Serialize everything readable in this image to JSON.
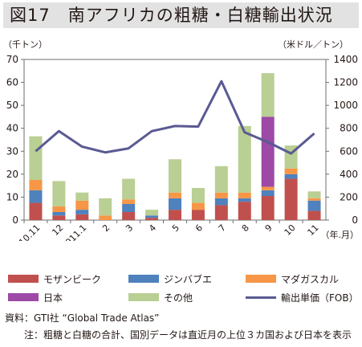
{
  "title": "図17　南アフリカの粗糖・白糖輸出状況",
  "yaxis_left_label": "（千トン）",
  "yaxis_right_label": "（米ドル／トン）",
  "xaxis_unit_label": "（年.月）",
  "source": "資料：GTI社 “Global Trade Atlas”",
  "note": "注：粗糖と白糖の合計、国別データは直近月の上位３カ国および日本を表示",
  "colors": {
    "mozambique": "#c0504d",
    "zimbabwe": "#4f81bd",
    "madagascar": "#f79646",
    "japan": "#9d49a6",
    "other": "#b9cf93",
    "price": "#5a5a93"
  },
  "chart_data": {
    "type": "bar",
    "stacked": true,
    "categories": [
      "2010.11",
      "12",
      "2011.1",
      "2",
      "3",
      "4",
      "5",
      "6",
      "7",
      "8",
      "9",
      "10",
      "11"
    ],
    "series": [
      {
        "name": "モザンビーク",
        "key": "mozambique",
        "values": [
          7.5,
          2,
          2.5,
          0,
          3.5,
          1,
          4.5,
          4.5,
          6.5,
          8,
          10.5,
          18,
          4
        ]
      },
      {
        "name": "ジンバブエ",
        "key": "zimbabwe",
        "values": [
          5.5,
          1.5,
          2,
          0,
          3.5,
          1,
          5,
          0,
          3,
          1.5,
          2.5,
          2,
          4.5
        ]
      },
      {
        "name": "マダガスカル",
        "key": "madagascar",
        "values": [
          4.5,
          2.5,
          4,
          2,
          2,
          0,
          2.5,
          3,
          2.5,
          2.5,
          1.5,
          2.5,
          1
        ]
      },
      {
        "name": "日本",
        "key": "japan",
        "values": [
          0,
          0,
          0,
          0,
          0,
          0,
          0,
          0,
          0,
          0,
          30.5,
          0,
          0
        ]
      },
      {
        "name": "その他",
        "key": "other",
        "values": [
          19,
          11,
          3.5,
          7.5,
          9,
          2.5,
          14.5,
          6.5,
          11.5,
          29,
          19,
          10,
          3
        ]
      }
    ],
    "line_series": {
      "name": "輸出単価（FOB）",
      "key": "price",
      "axis": "right",
      "values": [
        600,
        775,
        640,
        590,
        625,
        775,
        820,
        815,
        1210,
        765,
        680,
        580,
        755
      ]
    },
    "ylim_left": [
      0,
      70
    ],
    "yticks_left": [
      "0",
      "10",
      "20",
      "30",
      "40",
      "50",
      "60",
      "70"
    ],
    "ylim_right": [
      0,
      1400
    ],
    "yticks_right": [
      "0",
      "200",
      "400",
      "600",
      "800",
      "1000",
      "1200",
      "1400"
    ],
    "grid": false
  }
}
